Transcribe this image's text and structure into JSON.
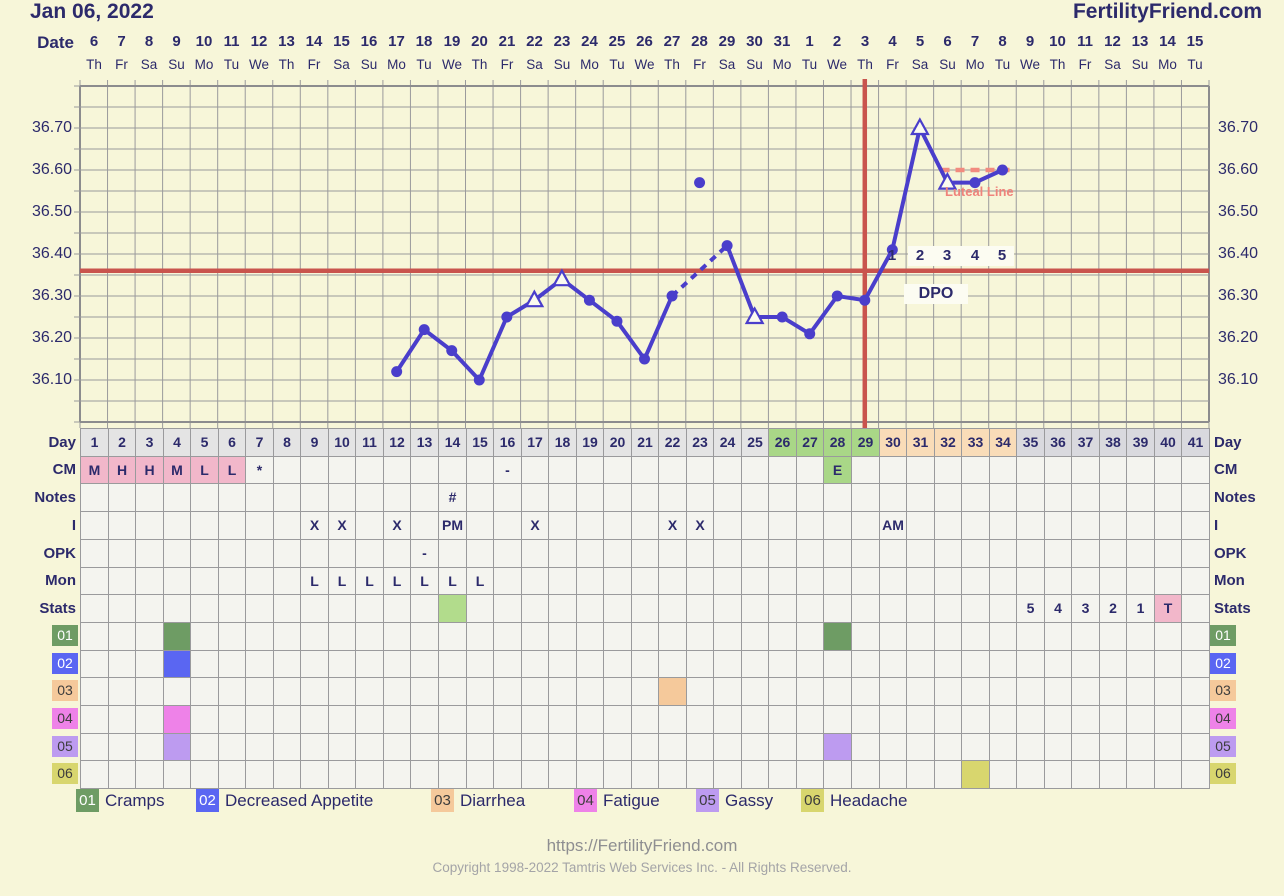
{
  "header": {
    "date_title": "Jan 06, 2022",
    "site": "FertilityFriend.com"
  },
  "date_row": {
    "label": "Date",
    "days": [
      {
        "d": "6",
        "w": "Th"
      },
      {
        "d": "7",
        "w": "Fr"
      },
      {
        "d": "8",
        "w": "Sa"
      },
      {
        "d": "9",
        "w": "Su"
      },
      {
        "d": "10",
        "w": "Mo"
      },
      {
        "d": "11",
        "w": "Tu"
      },
      {
        "d": "12",
        "w": "We"
      },
      {
        "d": "13",
        "w": "Th"
      },
      {
        "d": "14",
        "w": "Fr"
      },
      {
        "d": "15",
        "w": "Sa"
      },
      {
        "d": "16",
        "w": "Su"
      },
      {
        "d": "17",
        "w": "Mo"
      },
      {
        "d": "18",
        "w": "Tu"
      },
      {
        "d": "19",
        "w": "We"
      },
      {
        "d": "20",
        "w": "Th"
      },
      {
        "d": "21",
        "w": "Fr"
      },
      {
        "d": "22",
        "w": "Sa"
      },
      {
        "d": "23",
        "w": "Su"
      },
      {
        "d": "24",
        "w": "Mo"
      },
      {
        "d": "25",
        "w": "Tu"
      },
      {
        "d": "26",
        "w": "We"
      },
      {
        "d": "27",
        "w": "Th"
      },
      {
        "d": "28",
        "w": "Fr"
      },
      {
        "d": "29",
        "w": "Sa"
      },
      {
        "d": "30",
        "w": "Su"
      },
      {
        "d": "31",
        "w": "Mo"
      },
      {
        "d": "1",
        "w": "Tu"
      },
      {
        "d": "2",
        "w": "We"
      },
      {
        "d": "3",
        "w": "Th"
      },
      {
        "d": "4",
        "w": "Fr"
      },
      {
        "d": "5",
        "w": "Sa"
      },
      {
        "d": "6",
        "w": "Su"
      },
      {
        "d": "7",
        "w": "Mo"
      },
      {
        "d": "8",
        "w": "Tu"
      },
      {
        "d": "9",
        "w": "We"
      },
      {
        "d": "10",
        "w": "Th"
      },
      {
        "d": "11",
        "w": "Fr"
      },
      {
        "d": "12",
        "w": "Sa"
      },
      {
        "d": "13",
        "w": "Su"
      },
      {
        "d": "14",
        "w": "Mo"
      },
      {
        "d": "15",
        "w": "Tu"
      }
    ]
  },
  "y_axis": {
    "ticks": [
      "36.70",
      "36.60",
      "36.50",
      "36.40",
      "36.30",
      "36.20",
      "36.10"
    ]
  },
  "chart_data": {
    "type": "line",
    "title": "Basal body temperature chart",
    "ylim": [
      36.0,
      36.8
    ],
    "grid_step": 0.05,
    "x_days": [
      1,
      41
    ],
    "points": [
      {
        "day": 12,
        "temp": 36.12,
        "marker": "dot"
      },
      {
        "day": 13,
        "temp": 36.22,
        "marker": "dot"
      },
      {
        "day": 14,
        "temp": 36.17,
        "marker": "dot"
      },
      {
        "day": 15,
        "temp": 36.1,
        "marker": "dot"
      },
      {
        "day": 16,
        "temp": 36.25,
        "marker": "dot"
      },
      {
        "day": 17,
        "temp": 36.29,
        "marker": "triangle"
      },
      {
        "day": 18,
        "temp": 36.34,
        "marker": "triangle"
      },
      {
        "day": 19,
        "temp": 36.29,
        "marker": "dot"
      },
      {
        "day": 20,
        "temp": 36.24,
        "marker": "dot"
      },
      {
        "day": 21,
        "temp": 36.15,
        "marker": "dot"
      },
      {
        "day": 22,
        "temp": 36.3,
        "marker": "dot"
      },
      {
        "day": 23,
        "temp": 36.57,
        "marker": "dot",
        "linked": false
      },
      {
        "day": 24,
        "temp": 36.42,
        "marker": "dot"
      },
      {
        "day": 25,
        "temp": 36.25,
        "marker": "triangle"
      },
      {
        "day": 26,
        "temp": 36.25,
        "marker": "dot"
      },
      {
        "day": 27,
        "temp": 36.21,
        "marker": "dot"
      },
      {
        "day": 28,
        "temp": 36.3,
        "marker": "dot"
      },
      {
        "day": 29,
        "temp": 36.29,
        "marker": "dot"
      },
      {
        "day": 30,
        "temp": 36.41,
        "marker": "dot"
      },
      {
        "day": 31,
        "temp": 36.7,
        "marker": "triangle"
      },
      {
        "day": 32,
        "temp": 36.57,
        "marker": "triangle"
      },
      {
        "day": 33,
        "temp": 36.57,
        "marker": "dot"
      },
      {
        "day": 34,
        "temp": 36.6,
        "marker": "dot"
      }
    ],
    "coverline_temp": 36.36,
    "ovulation_line_day": 29,
    "luteal_line": {
      "temp": 36.6,
      "label": "Luteal Line",
      "from_day": 31.75,
      "to_day": 34.4
    },
    "dpo": {
      "text": "DPO",
      "labels": [
        {
          "day": 30,
          "text": "1"
        },
        {
          "day": 31,
          "text": "2"
        },
        {
          "day": 32,
          "text": "3"
        },
        {
          "day": 33,
          "text": "4"
        },
        {
          "day": 34,
          "text": "5"
        }
      ]
    }
  },
  "palette": {
    "line_blue": "#4a3ecb",
    "red": "#c9544d",
    "luteal_salmon": "#f28b7f",
    "hdr": "#e4e4e4",
    "hdr2": "#d9d9de",
    "grn": "#a9d787",
    "pch": "#f9dcb8",
    "pink": "#f2b7ca",
    "lgrn": "#b2dc8c",
    "c01": "#6e9c64",
    "c02": "#5a66f2",
    "c03": "#f5c99b",
    "c04": "#ee82e8",
    "c05": "#bd9bf0",
    "c06": "#d8d66e"
  },
  "table": {
    "rows": [
      {
        "id": "day",
        "kind": "text",
        "left_label": "Day",
        "right_label": "Day",
        "cells_seq": [
          "1",
          "2",
          "3",
          "4",
          "5",
          "6",
          "7",
          "8",
          "9",
          "10",
          "11",
          "12",
          "13",
          "14",
          "15",
          "16",
          "17",
          "18",
          "19",
          "20",
          "21",
          "22",
          "23",
          "24",
          "25",
          "26",
          "27",
          "28",
          "29",
          "30",
          "31",
          "32",
          "33",
          "34",
          "35",
          "36",
          "37",
          "38",
          "39",
          "40",
          "41"
        ],
        "bg_ranges": [
          {
            "from": 1,
            "to": 25,
            "key": "hdr"
          },
          {
            "from": 26,
            "to": 29,
            "key": "grn"
          },
          {
            "from": 30,
            "to": 34,
            "key": "pch"
          },
          {
            "from": 35,
            "to": 41,
            "key": "hdr2"
          }
        ]
      },
      {
        "id": "cm",
        "kind": "text",
        "left_label": "CM",
        "right_label": "CM",
        "cells": {
          "1": "M",
          "2": "H",
          "3": "H",
          "4": "M",
          "5": "L",
          "6": "L",
          "7": "*",
          "16": "-",
          "28": "E"
        },
        "bg_ranges": [
          {
            "from": 1,
            "to": 6,
            "key": "pink"
          },
          {
            "from": 28,
            "to": 28,
            "key": "grn"
          }
        ]
      },
      {
        "id": "notes",
        "kind": "text",
        "left_label": "Notes",
        "right_label": "Notes",
        "cells": {
          "14": "#"
        }
      },
      {
        "id": "intercourse",
        "kind": "text",
        "left_label": "I",
        "right_label": "I",
        "cells": {
          "9": "X",
          "10": "X",
          "12": "X",
          "14": "PM",
          "17": "X",
          "22": "X",
          "23": "X",
          "30": "AM"
        }
      },
      {
        "id": "opk",
        "kind": "text",
        "left_label": "OPK",
        "right_label": "OPK",
        "cells": {
          "13": "-"
        }
      },
      {
        "id": "mon",
        "kind": "text",
        "left_label": "Mon",
        "right_label": "Mon",
        "cells": {
          "9": "L",
          "10": "L",
          "11": "L",
          "12": "L",
          "13": "L",
          "14": "L",
          "15": "L"
        }
      },
      {
        "id": "stats",
        "kind": "text",
        "left_label": "Stats",
        "right_label": "Stats",
        "cells": {
          "35": "5",
          "36": "4",
          "37": "3",
          "38": "2",
          "39": "1",
          "40": "T"
        },
        "bg_ranges": [
          {
            "from": 14,
            "to": 14,
            "key": "lgrn"
          },
          {
            "from": 40,
            "to": 40,
            "key": "pink"
          }
        ]
      },
      {
        "id": "s01",
        "kind": "symptom",
        "code": "01",
        "color_key": "c01",
        "code_color": "#ffffff",
        "fills": [
          4,
          28
        ]
      },
      {
        "id": "s02",
        "kind": "symptom",
        "code": "02",
        "color_key": "c02",
        "code_color": "#ffffff",
        "fills": [
          4
        ]
      },
      {
        "id": "s03",
        "kind": "symptom",
        "code": "03",
        "color_key": "c03",
        "code_color": "#3c3c3c",
        "fills": [
          22
        ]
      },
      {
        "id": "s04",
        "kind": "symptom",
        "code": "04",
        "color_key": "c04",
        "code_color": "#3c3c3c",
        "fills": [
          4
        ]
      },
      {
        "id": "s05",
        "kind": "symptom",
        "code": "05",
        "color_key": "c05",
        "code_color": "#3c3c3c",
        "fills": [
          4,
          28
        ]
      },
      {
        "id": "s06",
        "kind": "symptom",
        "code": "06",
        "color_key": "c06",
        "code_color": "#3c3c3c",
        "fills": [
          33
        ]
      }
    ]
  },
  "legend": {
    "items": [
      {
        "code": "01",
        "label": "Cramps",
        "color_key": "c01",
        "code_color": "#ffffff"
      },
      {
        "code": "02",
        "label": "Decreased Appetite",
        "color_key": "c02",
        "code_color": "#ffffff"
      },
      {
        "code": "03",
        "label": "Diarrhea",
        "color_key": "c03",
        "code_color": "#3c3c3c"
      },
      {
        "code": "04",
        "label": "Fatigue",
        "color_key": "c04",
        "code_color": "#3c3c3c"
      },
      {
        "code": "05",
        "label": "Gassy",
        "color_key": "c05",
        "code_color": "#3c3c3c"
      },
      {
        "code": "06",
        "label": "Headache",
        "color_key": "c06",
        "code_color": "#3c3c3c"
      }
    ]
  },
  "footer": {
    "url": "https://FertilityFriend.com",
    "copyright": "Copyright 1998-2022 Tamtris Web Services Inc. - All Rights Reserved."
  }
}
